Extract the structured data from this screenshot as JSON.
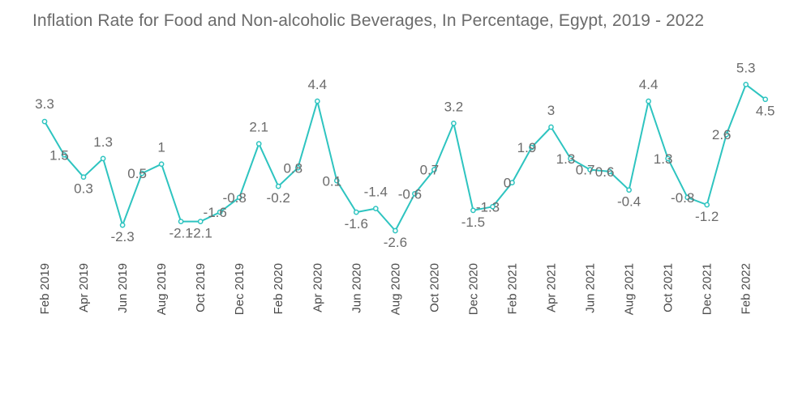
{
  "chart_data": {
    "type": "line",
    "title": "Inflation Rate for Food and Non-alcoholic Beverages, In Percentage, Egypt, 2019 - 2022",
    "xlabel": "",
    "ylabel": "",
    "grid": false,
    "legend": "none",
    "line_color": "#2ec4c0",
    "ylim": [
      -3,
      5.6
    ],
    "x": [
      "Feb 2019",
      "Mar 2019",
      "Apr 2019",
      "May 2019",
      "Jun 2019",
      "Jul 2019",
      "Aug 2019",
      "Sep 2019",
      "Oct 2019",
      "Nov 2019",
      "Dec 2019",
      "Jan 2020",
      "Feb 2020",
      "Mar 2020",
      "Apr 2020",
      "May 2020",
      "Jun 2020",
      "Jul 2020",
      "Aug 2020",
      "Sep 2020",
      "Oct 2020",
      "Nov 2020",
      "Dec 2020",
      "Jan 2021",
      "Feb 2021",
      "Mar 2021",
      "Apr 2021",
      "May 2021",
      "Jun 2021",
      "Jul 2021",
      "Aug 2021",
      "Sep 2021",
      "Oct 2021",
      "Nov 2021",
      "Dec 2021",
      "Jan 2022",
      "Feb 2022",
      "Mar 2022"
    ],
    "tick_labels": [
      "Feb 2019",
      "Apr 2019",
      "Jun 2019",
      "Aug 2019",
      "Oct 2019",
      "Dec 2019",
      "Feb 2020",
      "Apr 2020",
      "Jun 2020",
      "Aug 2020",
      "Oct 2020",
      "Dec 2020",
      "Feb 2021",
      "Apr 2021",
      "Jun 2021",
      "Aug 2021",
      "Oct 2021",
      "Dec 2021",
      "Feb 2022"
    ],
    "tick_indices": [
      0,
      2,
      4,
      6,
      8,
      10,
      12,
      14,
      16,
      18,
      20,
      22,
      24,
      26,
      28,
      30,
      32,
      34,
      36
    ],
    "values": [
      3.3,
      1.5,
      0.3,
      1.3,
      -2.3,
      0.5,
      1,
      -2.1,
      -2.1,
      -1.6,
      -0.8,
      2.1,
      -0.2,
      0.8,
      4.4,
      0.1,
      -1.6,
      -1.4,
      -2.6,
      -0.6,
      0.7,
      3.2,
      -1.5,
      -1.3,
      0,
      1.9,
      3,
      1.3,
      0.7,
      0.6,
      -0.4,
      4.4,
      1.3,
      -0.8,
      -1.2,
      2.6,
      5.3,
      4.5
    ],
    "labels": [
      "3.3",
      "1.5",
      "0.3",
      "1.3",
      "-2.3",
      "0.5",
      "1",
      "-2.1",
      "-2.1",
      "-1.6",
      "-0.8",
      "2.1",
      "-0.2",
      "0.8",
      "4.4",
      "0.1",
      "-1.6",
      "-1.4",
      "-2.6",
      "-0.6",
      "0.7",
      "3.2",
      "-1.5",
      "-1.3",
      "0",
      "1.9",
      "3",
      "1.3",
      "0.7",
      "0.6",
      "-0.4",
      "4.4",
      "1.3",
      "-0.8",
      "-1.2",
      "2.6",
      "5.3",
      "4.5"
    ]
  }
}
